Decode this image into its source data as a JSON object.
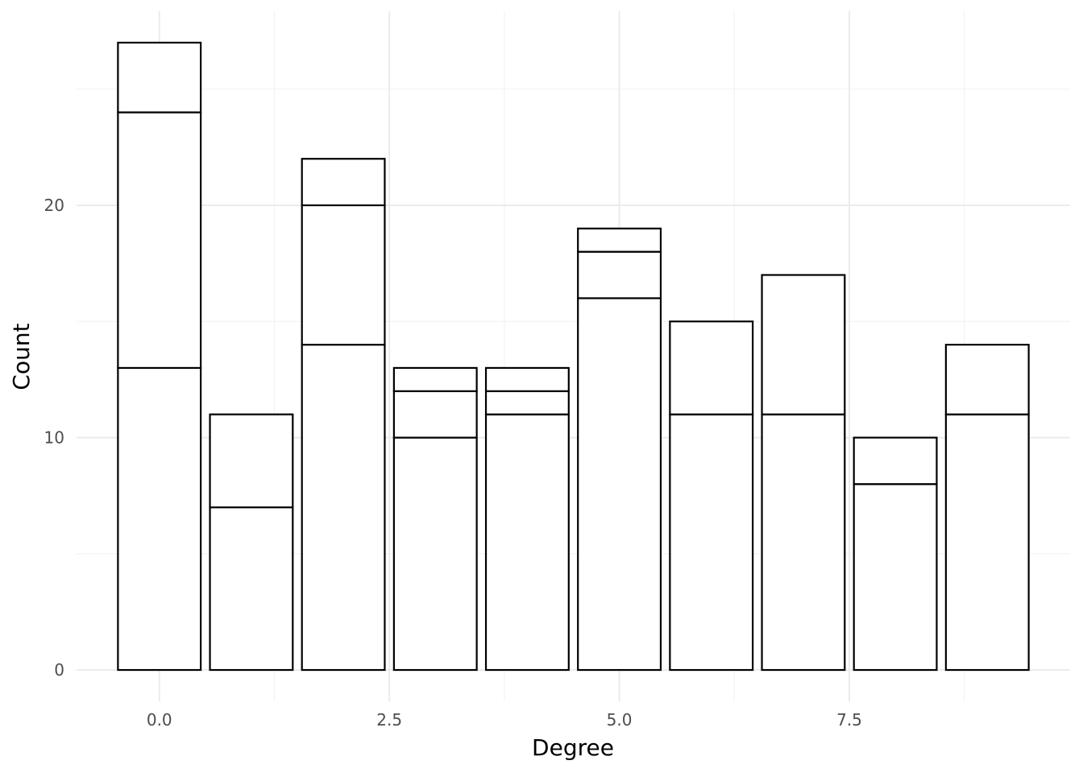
{
  "chart_data": {
    "type": "bar",
    "stacked": true,
    "title": "",
    "xlabel": "Degree",
    "ylabel": "Count",
    "x": [
      0,
      1,
      2,
      3,
      4,
      5,
      6,
      7,
      8,
      9
    ],
    "stack_boundaries": [
      [
        13,
        24,
        27
      ],
      [
        7,
        11
      ],
      [
        14,
        20,
        22
      ],
      [
        10,
        12,
        13
      ],
      [
        11,
        12,
        13
      ],
      [
        16,
        18,
        19
      ],
      [
        11,
        15
      ],
      [
        11,
        17
      ],
      [
        8,
        10
      ],
      [
        11,
        14
      ]
    ],
    "totals": [
      27,
      11,
      22,
      13,
      13,
      19,
      15,
      17,
      10,
      14
    ],
    "xlim": [
      -0.9,
      9.9
    ],
    "ylim": [
      -1.35,
      28.35
    ],
    "x_ticks": [
      0.0,
      2.5,
      5.0,
      7.5
    ],
    "x_tick_labels": [
      "0.0",
      "2.5",
      "5.0",
      "7.5"
    ],
    "y_ticks": [
      0,
      10,
      20
    ],
    "y_tick_labels": [
      "0",
      "10",
      "20"
    ],
    "grid": true,
    "legend": "none",
    "colors": {
      "bar_fill": "#ffffff",
      "bar_outline": "#000000",
      "grid": "#ebebeb"
    }
  }
}
